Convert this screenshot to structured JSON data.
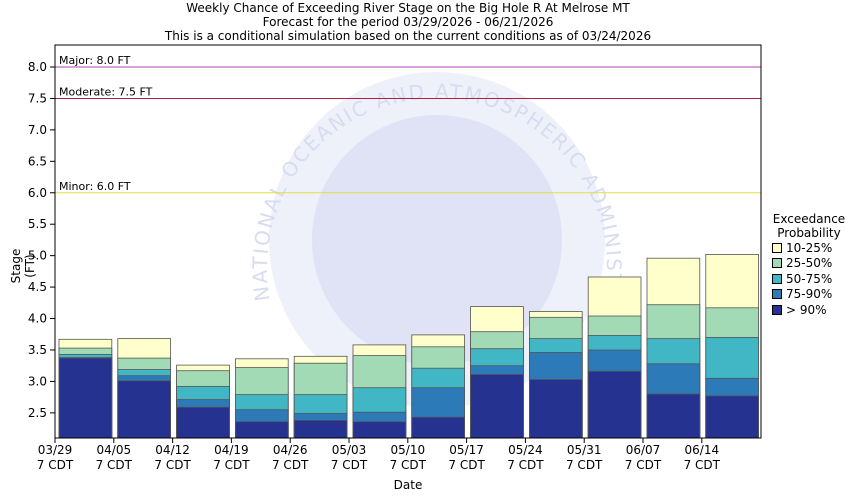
{
  "header": {
    "title": "Weekly Chance of Exceeding River Stage on the Big Hole R At Melrose MT",
    "forecast_period": "Forecast for the period 03/29/2026 - 06/21/2026",
    "note": "This is a conditional simulation based on the current conditions as of 03/24/2026"
  },
  "chart_data": {
    "type": "bar",
    "title": "Weekly Chance of Exceeding River Stage on the Big Hole R At Melrose MT",
    "xlabel": "Date",
    "ylabel": "Stage (FT)",
    "ylim": [
      2.1,
      8.35
    ],
    "yticks": [
      "2.5",
      "3.0",
      "3.5",
      "4.0",
      "4.5",
      "5.0",
      "5.5",
      "6.0",
      "6.5",
      "7.0",
      "7.5",
      "8.0"
    ],
    "ytick_values": [
      2.5,
      3.0,
      3.5,
      4.0,
      4.5,
      5.0,
      5.5,
      6.0,
      6.5,
      7.0,
      7.5,
      8.0
    ],
    "categories": [
      "03/29",
      "04/05",
      "04/12",
      "04/19",
      "04/26",
      "05/03",
      "05/10",
      "05/17",
      "05/24",
      "05/31",
      "06/07",
      "06/14"
    ],
    "category_sublabel": "7 CDT",
    "thresholds": [
      {
        "label": "Major: 8.0 FT",
        "value": 8.0,
        "color": "#b040b0"
      },
      {
        "label": "Moderate: 7.5 FT",
        "value": 7.5,
        "color": "#b02040"
      },
      {
        "label": "Minor: 6.0 FT",
        "value": 6.0,
        "color": "#e0e040"
      }
    ],
    "legend": {
      "title_line1": "Exceedance",
      "title_line2": "Probability",
      "placement": "right"
    },
    "series": [
      {
        "name": "> 90%",
        "color": "#25328f",
        "values": [
          3.37,
          3.01,
          2.59,
          2.36,
          2.38,
          2.36,
          2.43,
          3.11,
          3.03,
          3.16,
          2.8,
          2.77
        ]
      },
      {
        "name": "75-90%",
        "color": "#2c7ab8",
        "values": [
          3.38,
          3.09,
          2.71,
          2.55,
          2.49,
          2.51,
          2.9,
          3.25,
          3.46,
          3.5,
          3.28,
          3.05
        ]
      },
      {
        "name": "50-75%",
        "color": "#41b6c4",
        "values": [
          3.43,
          3.19,
          2.92,
          2.79,
          2.79,
          2.9,
          3.21,
          3.52,
          3.68,
          3.73,
          3.68,
          3.7
        ]
      },
      {
        "name": "25-50%",
        "color": "#a1dab4",
        "values": [
          3.53,
          3.37,
          3.17,
          3.22,
          3.29,
          3.41,
          3.55,
          3.79,
          4.02,
          4.04,
          4.22,
          4.17
        ]
      },
      {
        "name": "10-25%",
        "color": "#ffffcc",
        "values": [
          3.67,
          3.68,
          3.26,
          3.36,
          3.4,
          3.58,
          3.74,
          4.19,
          4.11,
          4.66,
          4.96,
          5.02
        ]
      }
    ],
    "legend_order": [
      "10-25%",
      "25-50%",
      "50-75%",
      "75-90%",
      "> 90%"
    ],
    "watermark": "NATIONAL OCEANIC AND ATMOSPHERIC ADMINISTRATION"
  }
}
